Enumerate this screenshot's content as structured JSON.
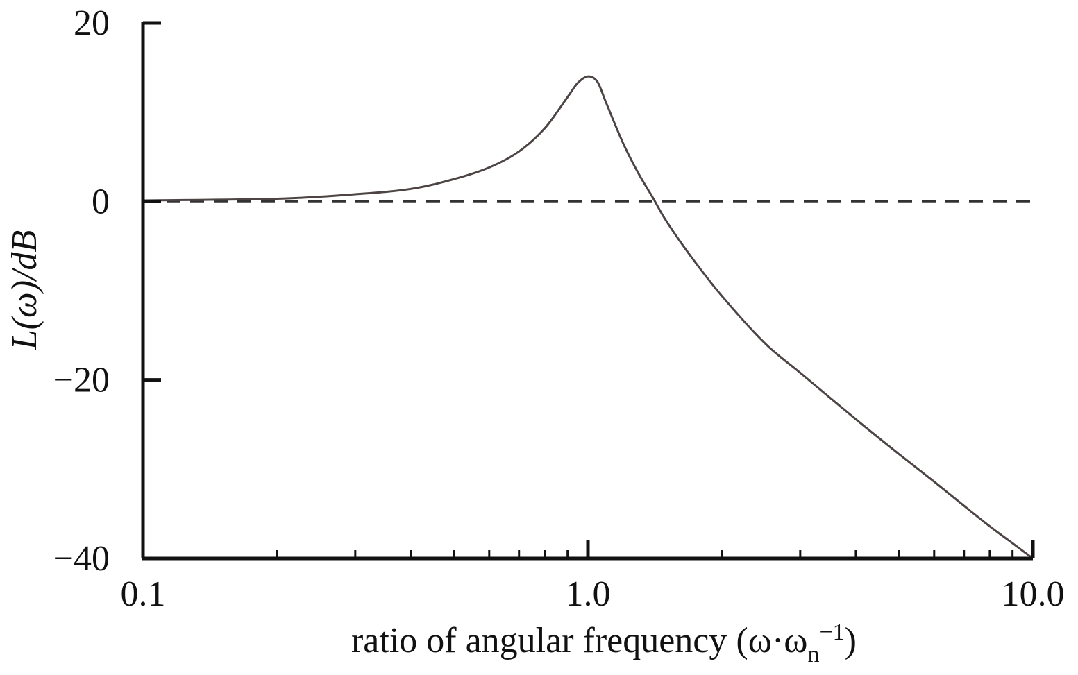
{
  "chart_data": {
    "type": "line",
    "title": "",
    "xlabel": "ratio of angular frequency (ω·ω",
    "xlabel_sub": "n",
    "xlabel_sup": "−1",
    "xlabel_close": ")",
    "ylabel": "L(ω)/dB",
    "x_scale": "log",
    "xlim": [
      0.1,
      10.0
    ],
    "ylim": [
      -40,
      20
    ],
    "x_ticks": [
      0.1,
      1.0,
      10.0
    ],
    "x_tick_labels": [
      "0.1",
      "1.0",
      "10.0"
    ],
    "y_ticks": [
      -40,
      -20,
      0,
      20
    ],
    "y_tick_labels": [
      "−40",
      "−20",
      "0",
      "20"
    ],
    "grid": false,
    "colors": {
      "curve": "#4d4444",
      "reference": "#333333",
      "axes": "#111111"
    },
    "series": [
      {
        "style": "solid",
        "x": [
          0.1,
          0.2,
          0.3,
          0.4,
          0.5,
          0.6,
          0.7,
          0.8,
          0.9,
          0.95,
          1.0,
          1.05,
          1.1,
          1.2,
          1.3,
          1.4,
          1.5,
          1.7,
          2.0,
          2.5,
          3.0,
          4.0,
          5.0,
          6.0,
          7.0,
          8.0,
          9.0,
          10.0
        ],
        "y": [
          0.1,
          0.3,
          0.8,
          1.4,
          2.5,
          3.8,
          5.6,
          8.2,
          11.7,
          13.3,
          14.0,
          13.4,
          11.0,
          6.5,
          3.1,
          0.4,
          -2.2,
          -6.1,
          -10.6,
          -15.9,
          -19.2,
          -24.4,
          -28.3,
          -31.4,
          -34.1,
          -36.4,
          -38.3,
          -40.0
        ]
      },
      {
        "style": "dashed",
        "x": [
          0.1,
          10.0
        ],
        "y": [
          0,
          0
        ]
      }
    ]
  }
}
